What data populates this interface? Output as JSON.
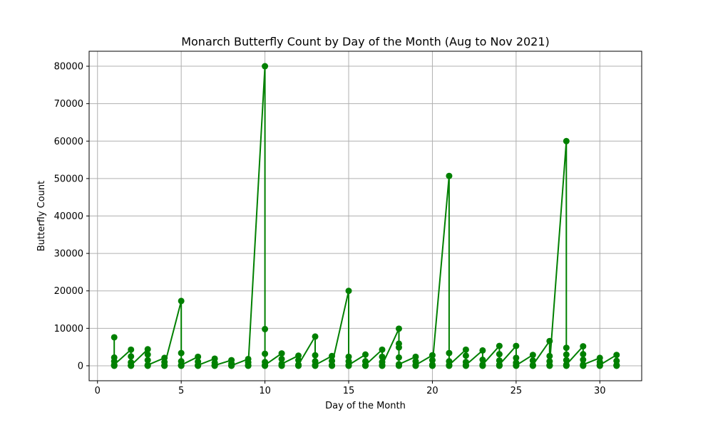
{
  "chart_data": {
    "type": "line",
    "title": "Monarch Butterfly Count by Day of the Month (Aug to Nov 2021)",
    "xlabel": "Day of the Month",
    "ylabel": "Butterfly Count",
    "xlim": [
      -0.5,
      32.5
    ],
    "ylim": [
      -4000,
      84000
    ],
    "xticks": [
      0,
      5,
      10,
      15,
      20,
      25,
      30
    ],
    "yticks": [
      0,
      10000,
      20000,
      30000,
      40000,
      50000,
      60000,
      70000,
      80000
    ],
    "grid": true,
    "color": "#008000",
    "marker": "circle",
    "points": [
      {
        "x": 1,
        "y": 7600
      },
      {
        "x": 1,
        "y": 2200
      },
      {
        "x": 1,
        "y": 1200
      },
      {
        "x": 1,
        "y": 300
      },
      {
        "x": 2,
        "y": 4300
      },
      {
        "x": 2,
        "y": 2500
      },
      {
        "x": 2,
        "y": 900
      },
      {
        "x": 2,
        "y": 100
      },
      {
        "x": 3,
        "y": 4400
      },
      {
        "x": 3,
        "y": 3000
      },
      {
        "x": 3,
        "y": 1500
      },
      {
        "x": 3,
        "y": 200
      },
      {
        "x": 4,
        "y": 2100
      },
      {
        "x": 4,
        "y": 1000
      },
      {
        "x": 4,
        "y": 100
      },
      {
        "x": 5,
        "y": 17300
      },
      {
        "x": 5,
        "y": 3400
      },
      {
        "x": 5,
        "y": 1200
      },
      {
        "x": 5,
        "y": 200
      },
      {
        "x": 6,
        "y": 2400
      },
      {
        "x": 6,
        "y": 1100
      },
      {
        "x": 6,
        "y": 150
      },
      {
        "x": 7,
        "y": 1900
      },
      {
        "x": 7,
        "y": 800
      },
      {
        "x": 7,
        "y": 100
      },
      {
        "x": 8,
        "y": 1500
      },
      {
        "x": 8,
        "y": 600
      },
      {
        "x": 8,
        "y": 50
      },
      {
        "x": 9,
        "y": 1800
      },
      {
        "x": 9,
        "y": 900
      },
      {
        "x": 9,
        "y": 100
      },
      {
        "x": 10,
        "y": 80000
      },
      {
        "x": 10,
        "y": 9800
      },
      {
        "x": 10,
        "y": 3200
      },
      {
        "x": 10,
        "y": 1000
      },
      {
        "x": 10,
        "y": 200
      },
      {
        "x": 11,
        "y": 3300
      },
      {
        "x": 11,
        "y": 1800
      },
      {
        "x": 11,
        "y": 500
      },
      {
        "x": 12,
        "y": 2700
      },
      {
        "x": 12,
        "y": 1500
      },
      {
        "x": 12,
        "y": 300
      },
      {
        "x": 13,
        "y": 7800
      },
      {
        "x": 13,
        "y": 2800
      },
      {
        "x": 13,
        "y": 1200
      },
      {
        "x": 13,
        "y": 200
      },
      {
        "x": 14,
        "y": 2600
      },
      {
        "x": 14,
        "y": 1300
      },
      {
        "x": 14,
        "y": 200
      },
      {
        "x": 15,
        "y": 20000
      },
      {
        "x": 15,
        "y": 2400
      },
      {
        "x": 15,
        "y": 1200
      },
      {
        "x": 15,
        "y": 200
      },
      {
        "x": 16,
        "y": 3000
      },
      {
        "x": 16,
        "y": 1200
      },
      {
        "x": 16,
        "y": 200
      },
      {
        "x": 17,
        "y": 4300
      },
      {
        "x": 17,
        "y": 2400
      },
      {
        "x": 17,
        "y": 1000
      },
      {
        "x": 17,
        "y": 200
      },
      {
        "x": 18,
        "y": 9900
      },
      {
        "x": 18,
        "y": 5900
      },
      {
        "x": 18,
        "y": 4900
      },
      {
        "x": 18,
        "y": 2200
      },
      {
        "x": 18,
        "y": 400
      },
      {
        "x": 19,
        "y": 2400
      },
      {
        "x": 19,
        "y": 1200
      },
      {
        "x": 19,
        "y": 200
      },
      {
        "x": 20,
        "y": 2800
      },
      {
        "x": 20,
        "y": 1500
      },
      {
        "x": 20,
        "y": 300
      },
      {
        "x": 21,
        "y": 50700
      },
      {
        "x": 21,
        "y": 3400
      },
      {
        "x": 21,
        "y": 1200
      },
      {
        "x": 21,
        "y": 200
      },
      {
        "x": 22,
        "y": 4300
      },
      {
        "x": 22,
        "y": 2700
      },
      {
        "x": 22,
        "y": 1000
      },
      {
        "x": 22,
        "y": 200
      },
      {
        "x": 23,
        "y": 4100
      },
      {
        "x": 23,
        "y": 1600
      },
      {
        "x": 23,
        "y": 300
      },
      {
        "x": 24,
        "y": 5300
      },
      {
        "x": 24,
        "y": 3100
      },
      {
        "x": 24,
        "y": 1400
      },
      {
        "x": 24,
        "y": 300
      },
      {
        "x": 25,
        "y": 5300
      },
      {
        "x": 25,
        "y": 2100
      },
      {
        "x": 25,
        "y": 800
      },
      {
        "x": 25,
        "y": 100
      },
      {
        "x": 26,
        "y": 2900
      },
      {
        "x": 26,
        "y": 1400
      },
      {
        "x": 26,
        "y": 200
      },
      {
        "x": 27,
        "y": 6600
      },
      {
        "x": 27,
        "y": 2600
      },
      {
        "x": 27,
        "y": 1200
      },
      {
        "x": 27,
        "y": 200
      },
      {
        "x": 28,
        "y": 60000
      },
      {
        "x": 28,
        "y": 4800
      },
      {
        "x": 28,
        "y": 3000
      },
      {
        "x": 28,
        "y": 1500
      },
      {
        "x": 28,
        "y": 300
      },
      {
        "x": 29,
        "y": 5200
      },
      {
        "x": 29,
        "y": 3100
      },
      {
        "x": 29,
        "y": 1600
      },
      {
        "x": 29,
        "y": 300
      },
      {
        "x": 30,
        "y": 2100
      },
      {
        "x": 30,
        "y": 1000
      },
      {
        "x": 30,
        "y": 200
      },
      {
        "x": 31,
        "y": 2900
      },
      {
        "x": 31,
        "y": 1300
      },
      {
        "x": 31,
        "y": 200
      }
    ]
  }
}
